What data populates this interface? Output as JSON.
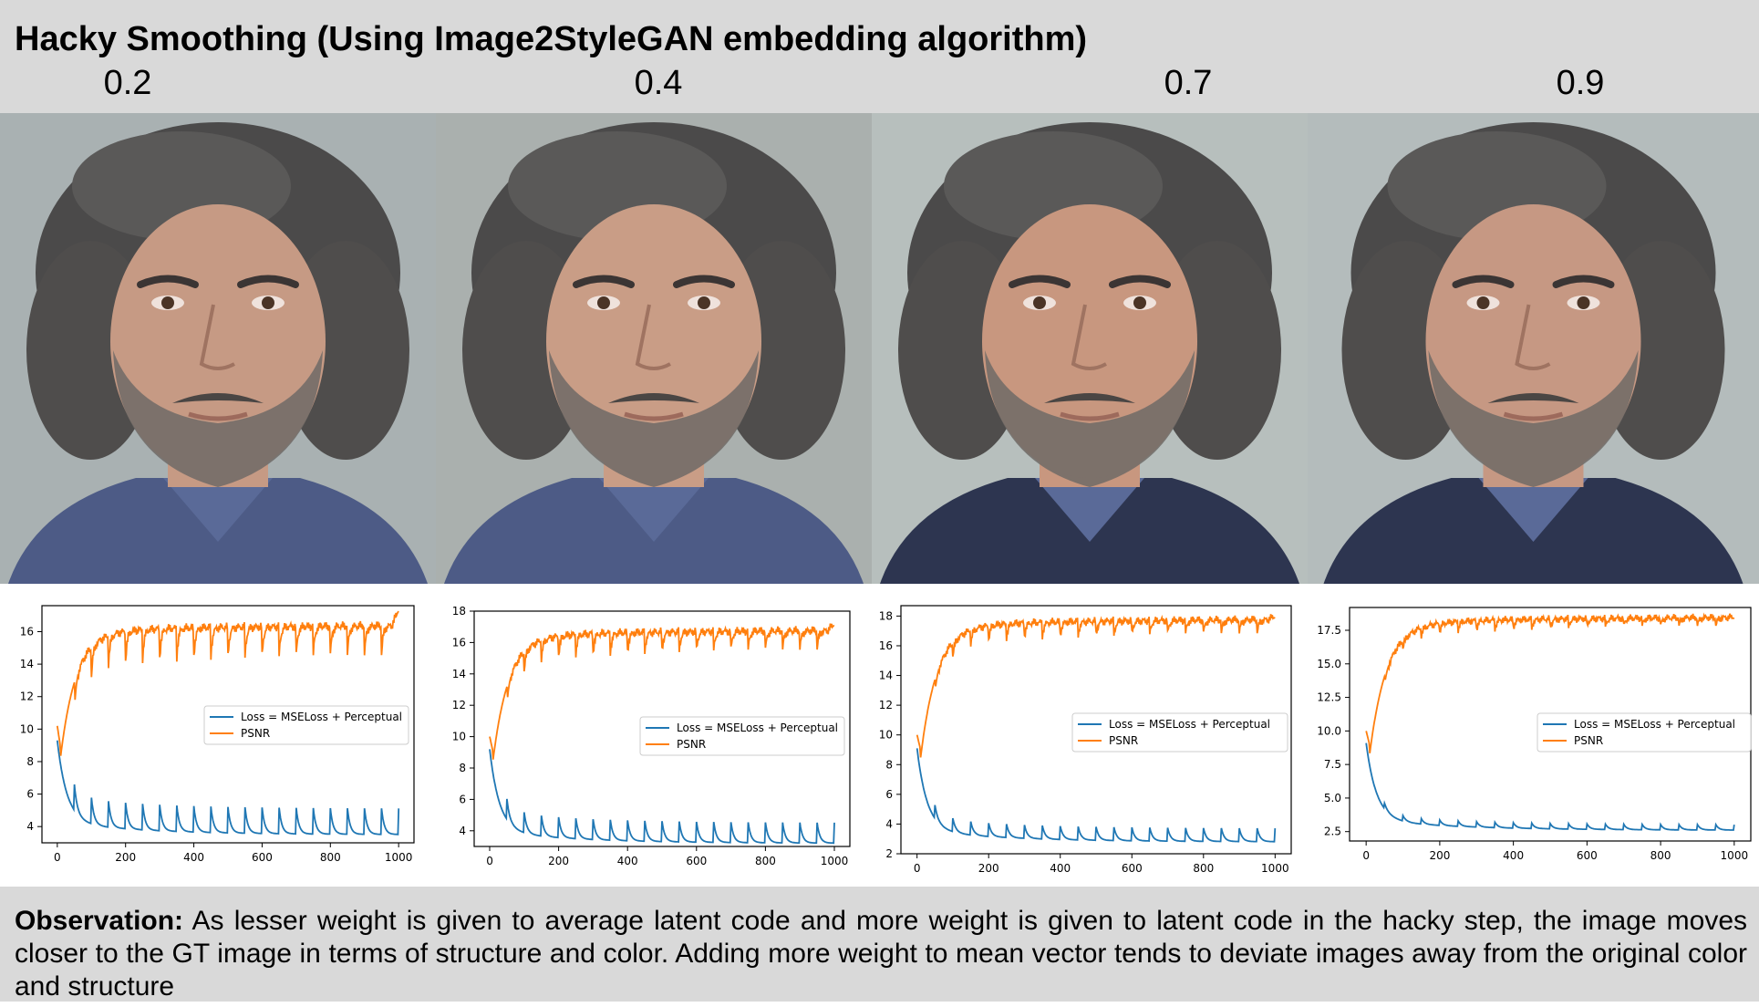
{
  "title": "Hacky Smoothing (Using Image2StyleGAN embedding algorithm)",
  "weights": [
    "0.2",
    "0.4",
    "0.7",
    "0.9"
  ],
  "face_description": "portrait of bearded man with grey curly hair",
  "observation": {
    "label": "Observation:",
    "text": "As lesser weight is given to average latent code and more weight is given to latent code in the hacky step, the image moves closer to the GT image in terms of structure and color. Adding more weight to mean vector tends to deviate images away from the original color and structure"
  },
  "colors": {
    "header_bg": "#d9d9d9",
    "loss": "#1f77b4",
    "psnr": "#ff7f0e"
  },
  "chart_data": [
    {
      "type": "line",
      "weight": "0.2",
      "x_range": [
        0,
        1000
      ],
      "ylim": [
        3.0,
        17.6
      ],
      "xticks": [
        0,
        200,
        400,
        600,
        800,
        1000
      ],
      "yticks": [
        4,
        6,
        8,
        10,
        12,
        14,
        16
      ],
      "ytick_labels": [
        "4",
        "6",
        "8",
        "10",
        "12",
        "14",
        "16"
      ],
      "legend": [
        "Loss = MSELoss + Perceptual",
        "PSNR"
      ],
      "legend_position": "center-right",
      "series": [
        {
          "name": "Loss = MSELoss + Perceptual",
          "start": 8.5,
          "floor": 3.5,
          "spike": 1.6,
          "period": 50
        },
        {
          "name": "PSNR",
          "start": 10.2,
          "dip": 8.8,
          "plateau": 16.4,
          "dip_depth": 1.8,
          "period": 50,
          "end": 17.4
        }
      ]
    },
    {
      "type": "line",
      "weight": "0.4",
      "x_range": [
        0,
        1000
      ],
      "ylim": [
        3.0,
        18.0
      ],
      "xticks": [
        0,
        200,
        400,
        600,
        800,
        1000
      ],
      "yticks": [
        4,
        6,
        8,
        10,
        12,
        14,
        16,
        18
      ],
      "ytick_labels": [
        "4",
        "6",
        "8",
        "10",
        "12",
        "14",
        "16",
        "18"
      ],
      "legend": [
        "Loss = MSELoss + Perceptual",
        "PSNR"
      ],
      "legend_position": "center-right",
      "series": [
        {
          "name": "Loss = MSELoss + Perceptual",
          "start": 8.4,
          "floor": 3.2,
          "spike": 1.3,
          "period": 50
        },
        {
          "name": "PSNR",
          "start": 10.0,
          "dip": 9.0,
          "plateau": 16.8,
          "dip_depth": 1.2,
          "period": 50,
          "end": 17.2
        }
      ]
    },
    {
      "type": "line",
      "weight": "0.7",
      "x_range": [
        0,
        1000
      ],
      "ylim": [
        2.0,
        18.7
      ],
      "xticks": [
        0,
        200,
        400,
        600,
        800,
        1000
      ],
      "yticks": [
        2,
        4,
        6,
        8,
        10,
        12,
        14,
        16,
        18
      ],
      "ytick_labels": [
        "2",
        "4",
        "6",
        "8",
        "10",
        "12",
        "14",
        "16",
        "18"
      ],
      "legend": [
        "Loss = MSELoss + Perceptual",
        "PSNR"
      ],
      "legend_position": "center-right",
      "series": [
        {
          "name": "Loss = MSELoss + Perceptual",
          "start": 8.3,
          "floor": 2.8,
          "spike": 0.9,
          "period": 50
        },
        {
          "name": "PSNR",
          "start": 10.0,
          "dip": 9.0,
          "plateau": 17.8,
          "dip_depth": 0.9,
          "period": 50,
          "end": 18.0
        }
      ]
    },
    {
      "type": "line",
      "weight": "0.9",
      "x_range": [
        0,
        1000
      ],
      "ylim": [
        1.8,
        19.2
      ],
      "xticks": [
        0,
        200,
        400,
        600,
        800,
        1000
      ],
      "yticks": [
        2.5,
        5.0,
        7.5,
        10.0,
        12.5,
        15.0,
        17.5
      ],
      "ytick_labels": [
        "2.5",
        "5.0",
        "7.5",
        "10.0",
        "12.5",
        "15.0",
        "17.5"
      ],
      "legend": [
        "Loss = MSELoss + Perceptual",
        "PSNR"
      ],
      "legend_position": "center-right",
      "series": [
        {
          "name": "Loss = MSELoss + Perceptual",
          "start": 8.3,
          "floor": 2.6,
          "spike": 0.4,
          "period": 50
        },
        {
          "name": "PSNR",
          "start": 10.0,
          "dip": 8.9,
          "plateau": 18.5,
          "dip_depth": 0.6,
          "period": 50,
          "end": 18.5
        }
      ]
    }
  ]
}
